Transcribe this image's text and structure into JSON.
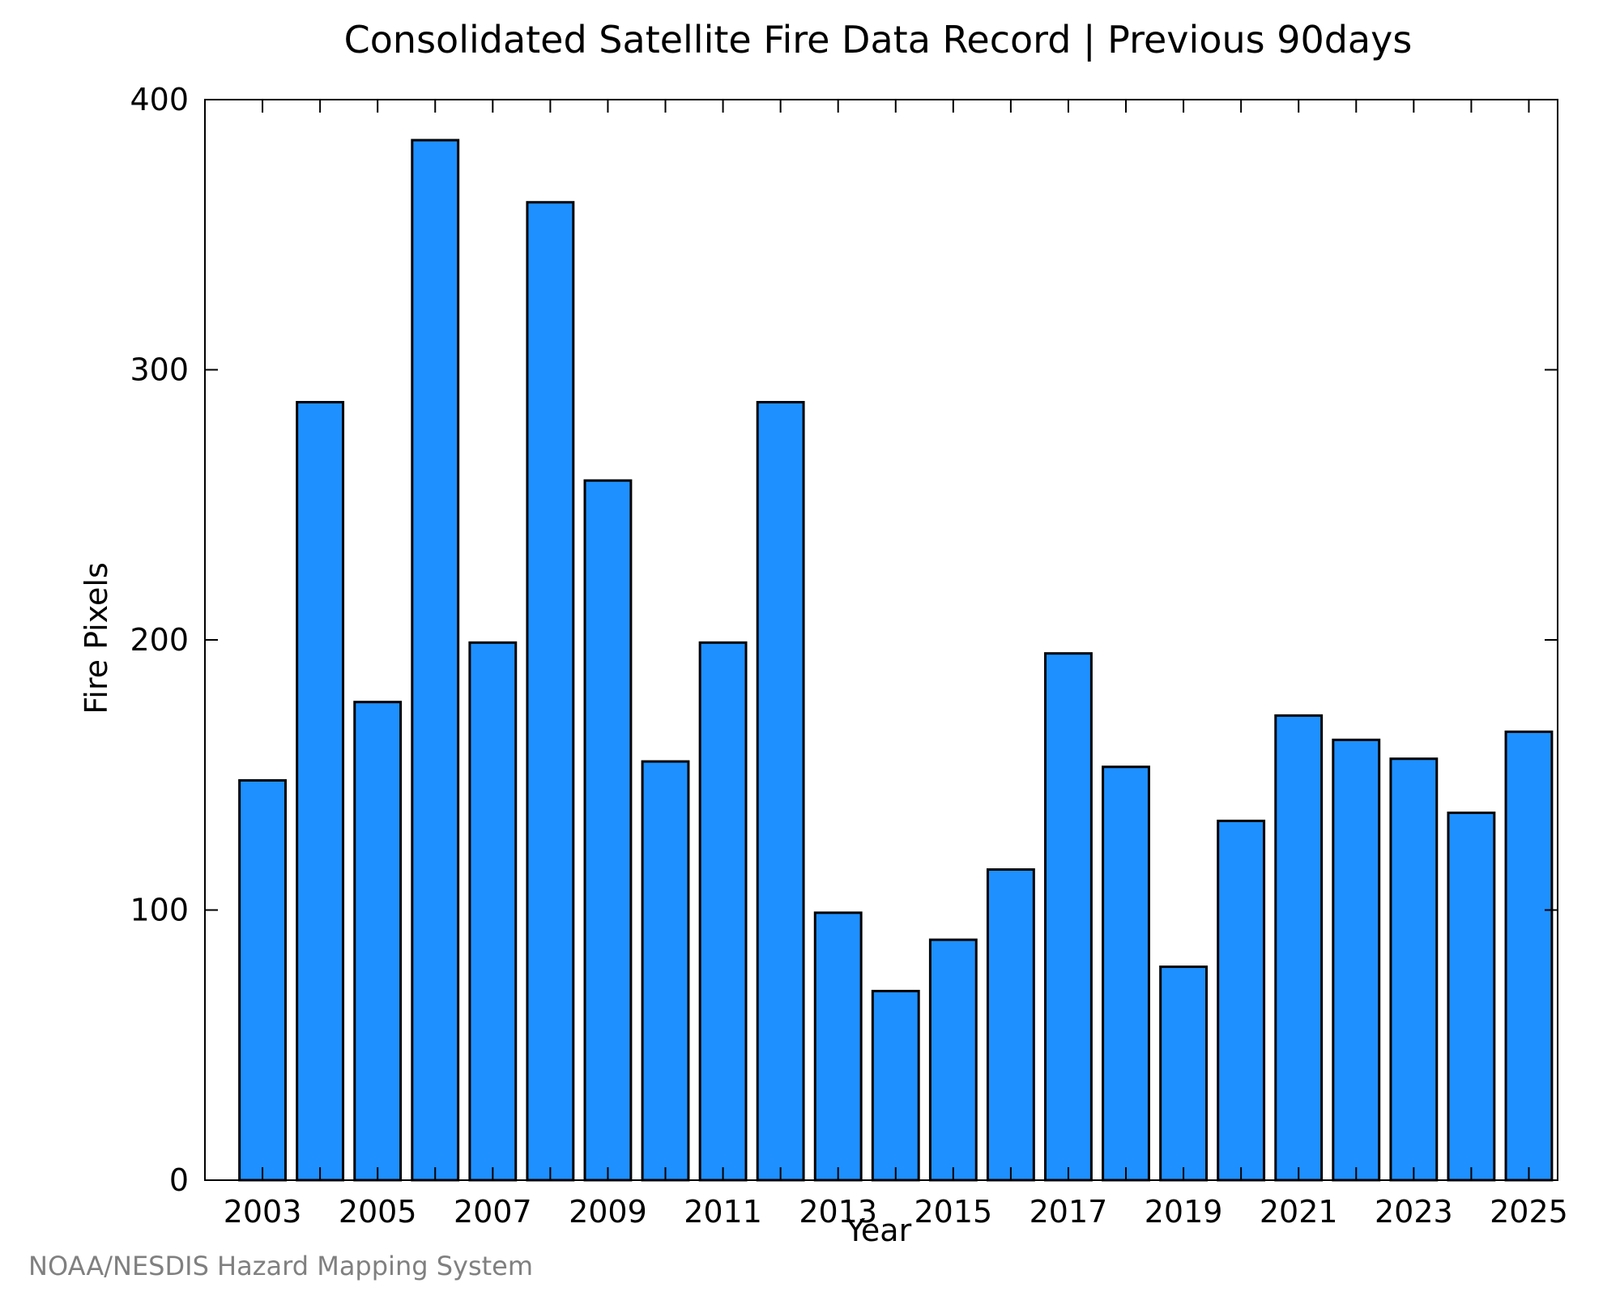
{
  "chart_data": {
    "type": "bar",
    "title": "Consolidated Satellite Fire Data Record | Previous 90days",
    "xlabel": "Year",
    "ylabel": "Fire Pixels",
    "categories": [
      "2003",
      "2004",
      "2005",
      "2006",
      "2007",
      "2008",
      "2009",
      "2010",
      "2011",
      "2012",
      "2013",
      "2014",
      "2015",
      "2016",
      "2017",
      "2018",
      "2019",
      "2020",
      "2021",
      "2022",
      "2023",
      "2024",
      "2025"
    ],
    "values": [
      148,
      288,
      177,
      385,
      199,
      362,
      259,
      155,
      199,
      288,
      99,
      70,
      89,
      115,
      195,
      153,
      79,
      133,
      172,
      163,
      156,
      136,
      166
    ],
    "x_tick_labels": [
      "2003",
      "2005",
      "2007",
      "2009",
      "2011",
      "2013",
      "2015",
      "2017",
      "2019",
      "2021",
      "2023",
      "2025"
    ],
    "y_tick_labels": [
      "0",
      "100",
      "200",
      "300",
      "400"
    ],
    "y_ticks": [
      0,
      100,
      200,
      300,
      400
    ],
    "ylim": [
      0,
      400
    ],
    "grid": false,
    "bar_color": "#1e90ff",
    "bar_edge_color": "#000000"
  },
  "footer": {
    "credit": "NOAA/NESDIS Hazard Mapping System"
  }
}
